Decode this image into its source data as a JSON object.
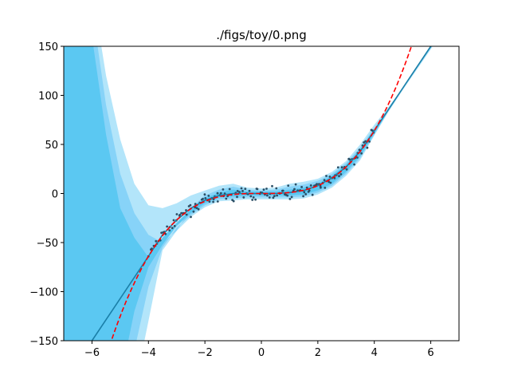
{
  "chart_data": {
    "type": "line",
    "title": "./figs/toy/0.png",
    "xlabel": "",
    "ylabel": "",
    "xlim": [
      -7,
      7
    ],
    "ylim": [
      -150,
      150
    ],
    "xticks": [
      -6,
      -4,
      -2,
      0,
      2,
      4,
      6
    ],
    "yticks": [
      -150,
      -100,
      -50,
      0,
      50,
      100,
      150
    ],
    "xtick_labels": [
      "−6",
      "−4",
      "−2",
      "0",
      "2",
      "4",
      "6"
    ],
    "ytick_labels": [
      "−150",
      "−100",
      "−50",
      "0",
      "50",
      "100",
      "150"
    ],
    "grid": false,
    "legend": "none",
    "colors": {
      "band_3sd": "#b3e5fa",
      "band_2sd": "#87d3f8",
      "band_1sd": "#5bc8f2",
      "mean_line": "#1a7fa8",
      "truth_line": "#ff0000",
      "points": "#2b4f66"
    },
    "truth_curve": {
      "function": "y = x^3",
      "style": "dashed",
      "x_range": [
        -7,
        7
      ]
    },
    "mean_curve": {
      "x": [
        -7,
        -6,
        -5,
        -4,
        -3.5,
        -3,
        -2.5,
        -2,
        -1.5,
        -1,
        -0.5,
        0,
        0.5,
        1,
        1.5,
        2,
        2.5,
        3,
        3.5,
        4,
        5,
        6,
        7
      ],
      "y": [
        -195,
        -150,
        -107,
        -64,
        -42,
        -27,
        -15,
        -7,
        -2,
        0,
        0,
        0,
        0,
        1,
        3,
        8,
        16,
        27,
        43,
        64,
        107,
        150,
        193
      ]
    },
    "bands": {
      "x": [
        -7,
        -6.5,
        -6,
        -5.5,
        -5,
        -4.5,
        -4,
        -3.5,
        -3,
        -2.5,
        -2,
        -1.5,
        -1,
        -0.5,
        0,
        0.5,
        1,
        1.5,
        2,
        2.5,
        3,
        3.5,
        4,
        4.5,
        5,
        5.5,
        6,
        6.5,
        7
      ],
      "upper_3sd": [
        520,
        380,
        220,
        120,
        55,
        10,
        -12,
        -15,
        -10,
        -2,
        3,
        8,
        10,
        6,
        5,
        6,
        10,
        12,
        15,
        22,
        33,
        50,
        70,
        88,
        107,
        128,
        150,
        172,
        194
      ],
      "upper_2sd": [
        450,
        330,
        190,
        90,
        20,
        -20,
        -42,
        -50,
        -38,
        -15,
        -2,
        4,
        7,
        4,
        3,
        4,
        7,
        9,
        13,
        20,
        31,
        47,
        67,
        86,
        106,
        128,
        150,
        172,
        194
      ],
      "upper_1sd": [
        380,
        280,
        160,
        60,
        -15,
        -45,
        -65,
        -45,
        -30,
        -16,
        -5,
        1,
        4,
        2,
        2,
        2,
        4,
        6,
        10,
        18,
        29,
        45,
        65,
        85,
        107,
        128,
        150,
        172,
        194
      ],
      "lower_1sd": [
        -800,
        -620,
        -450,
        -300,
        -190,
        -120,
        -75,
        -52,
        -33,
        -20,
        -10,
        -4,
        -3,
        -2,
        -2,
        -2,
        -2,
        -1,
        3,
        10,
        22,
        38,
        61,
        85,
        107,
        128,
        149,
        171,
        192
      ],
      "lower_2sd": [
        -800,
        -700,
        -520,
        -370,
        -240,
        -160,
        -95,
        -55,
        -35,
        -22,
        -12,
        -6,
        -5,
        -4,
        -4,
        -4,
        -4,
        -3,
        1,
        8,
        20,
        36,
        60,
        84,
        106,
        127,
        148,
        170,
        191
      ],
      "lower_3sd": [
        -800,
        -760,
        -600,
        -430,
        -290,
        -200,
        -130,
        -58,
        -38,
        -24,
        -14,
        -8,
        -7,
        -6,
        -6,
        -6,
        -6,
        -5,
        -1,
        6,
        18,
        34,
        59,
        83,
        105,
        126,
        147,
        169,
        190
      ]
    },
    "scatter": {
      "x_range": [
        -4,
        4
      ],
      "count": 160,
      "function": "y = x^3 + noise",
      "noise_sd": 3
    }
  }
}
